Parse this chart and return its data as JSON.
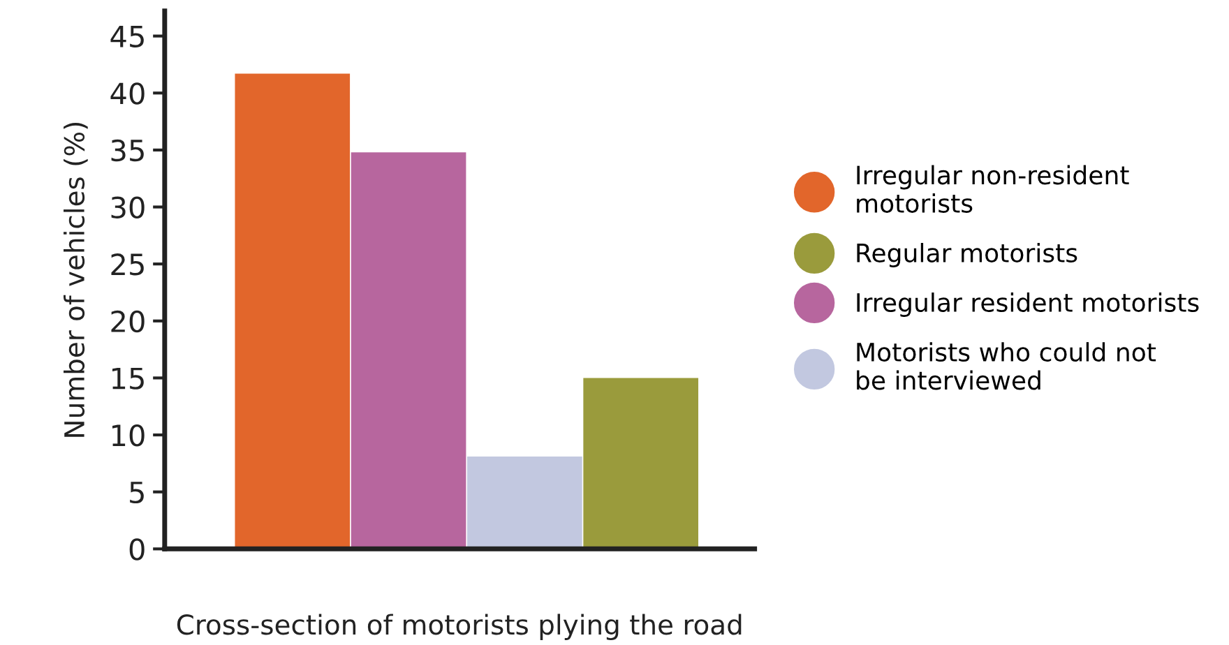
{
  "chart_data": {
    "type": "bar",
    "xlabel": "Cross-section of motorists plying the road",
    "ylabel": "Number of vehicles (%)",
    "categories": [
      null,
      null,
      null,
      null
    ],
    "series": [
      {
        "name": "Irregular non-resident\nmotorists",
        "color": "#e2662b",
        "values": [
          41.7,
          null,
          null,
          null
        ]
      },
      {
        "name": "Regular motorists",
        "color": "#9a9b3c",
        "values": [
          null,
          null,
          null,
          15
        ]
      },
      {
        "name": "Irregular resident motorists",
        "color": "#b7669e",
        "values": [
          null,
          34.8,
          null,
          null
        ]
      },
      {
        "name": "Motorists who could not\nbe interviewed",
        "color": "#c2c8e0",
        "values": [
          null,
          null,
          8.1,
          null
        ]
      }
    ],
    "ylim": [
      0,
      47.2
    ],
    "yticks": [
      0,
      5,
      10,
      15,
      20,
      25,
      30,
      35,
      40,
      45
    ],
    "grid": false,
    "legend": "right"
  }
}
